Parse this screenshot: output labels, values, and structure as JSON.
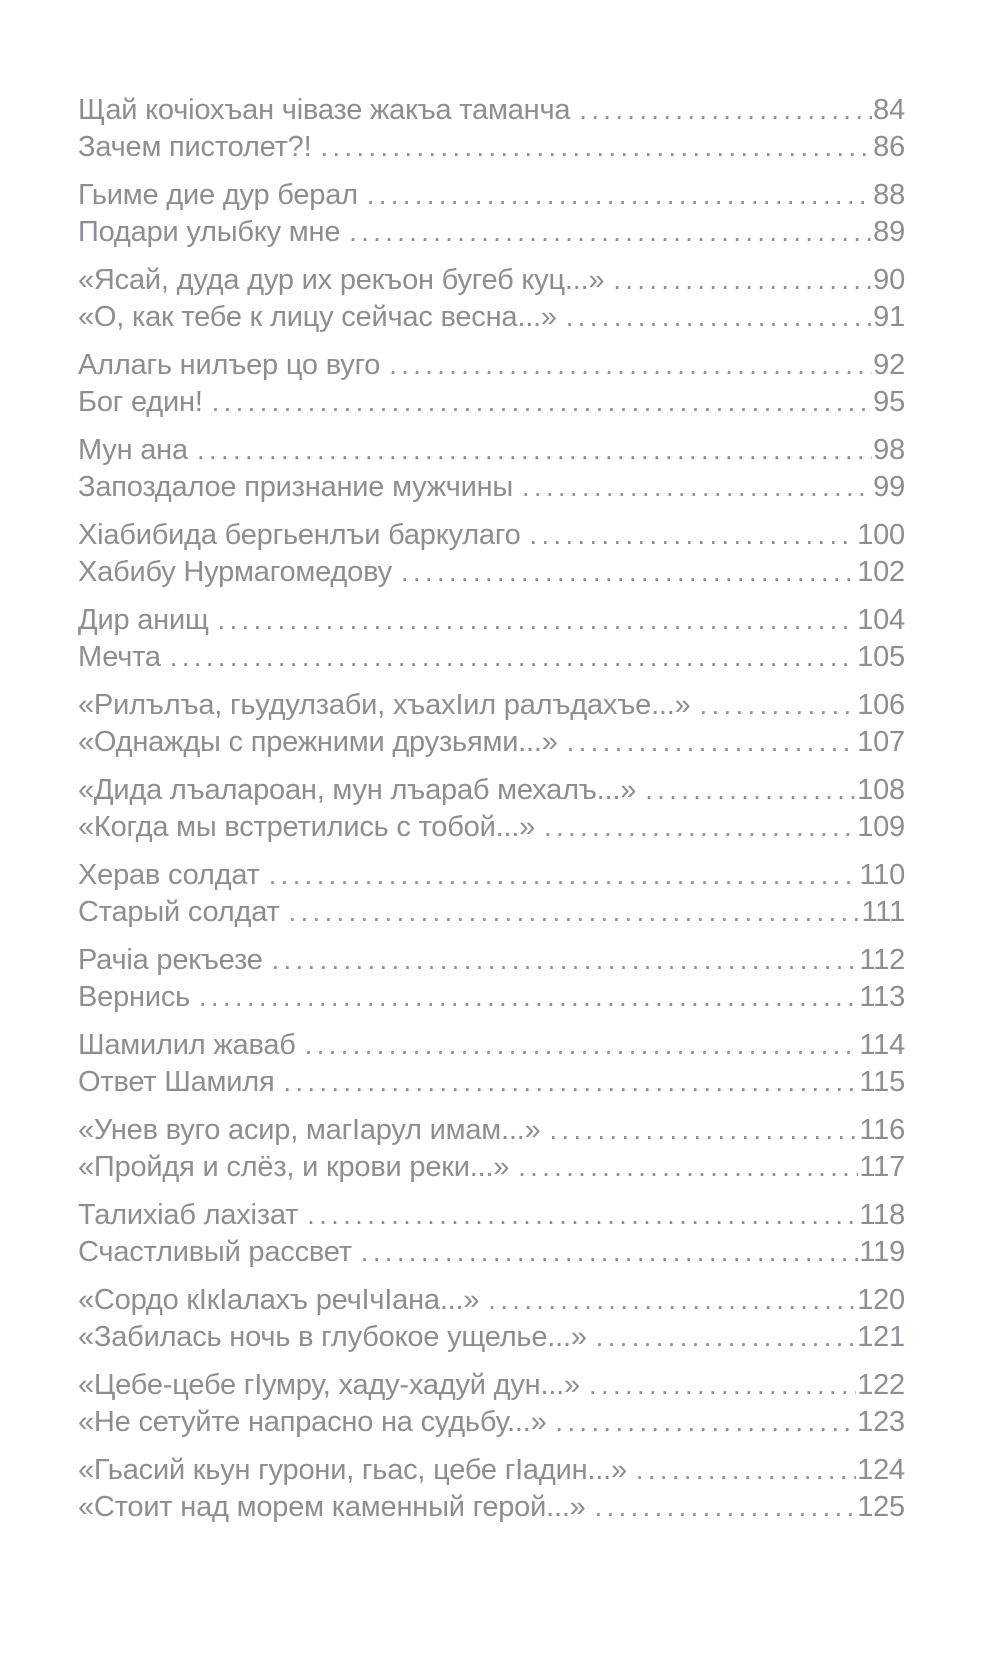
{
  "page": {
    "background_color": "#ffffff",
    "text_color": "#8b8f92"
  },
  "toc": {
    "pairs": [
      [
        {
          "title": "Щай кочіохъан чівазе жакъа таманча",
          "page": "84"
        },
        {
          "title": "Зачем пистолет?!",
          "page": "86"
        }
      ],
      [
        {
          "title": "Гьиме дие дур берал",
          "page": "88"
        },
        {
          "title": "Подари улыбку мне",
          "page": "89"
        }
      ],
      [
        {
          "title": "«Ясай, дуда дур их рекъон бугеб куц...»",
          "page": "90"
        },
        {
          "title": "«О, как тебе к лицу сейчас весна...»",
          "page": "91"
        }
      ],
      [
        {
          "title": "Аллагь нилъер цо вуго",
          "page": "92"
        },
        {
          "title": "Бог един!",
          "page": "95"
        }
      ],
      [
        {
          "title": "Мун ана",
          "page": "98"
        },
        {
          "title": "Запоздалое признание мужчины",
          "page": "99"
        }
      ],
      [
        {
          "title": "Хіабибида бергьенлъи баркулаго",
          "page": "100"
        },
        {
          "title": "Хабибу Нурмагомедову",
          "page": "102"
        }
      ],
      [
        {
          "title": "Дир анищ",
          "page": "104"
        },
        {
          "title": "Мечта",
          "page": "105"
        }
      ],
      [
        {
          "title": "«Рилълъа, гьудулзаби, хъахІил ралъдахъе...»",
          "page": "106"
        },
        {
          "title": "«Однажды с прежними друзьями...»",
          "page": "107"
        }
      ],
      [
        {
          "title": "«Дида лъалароан, мун лъараб мехалъ...»",
          "page": "108"
        },
        {
          "title": "«Когда мы встретились с тобой...»",
          "page": "109"
        }
      ],
      [
        {
          "title": "Херав солдат",
          "page": "110"
        },
        {
          "title": "Старый солдат",
          "page": "111"
        }
      ],
      [
        {
          "title": "Рачіа рекъезе",
          "page": "112"
        },
        {
          "title": "Вернись",
          "page": "113"
        }
      ],
      [
        {
          "title": "Шамилил жаваб",
          "page": "114"
        },
        {
          "title": "Ответ Шамиля",
          "page": "115"
        }
      ],
      [
        {
          "title": "«Унев вуго асир, магІарул имам...»",
          "page": "116"
        },
        {
          "title": "«Пройдя и слёз, и крови реки...»",
          "page": "117"
        }
      ],
      [
        {
          "title": "Талихіаб лахізат",
          "page": "118"
        },
        {
          "title": "Счастливый рассвет",
          "page": "119"
        }
      ],
      [
        {
          "title": "«Сордо кІкІалахъ речІчІана...»",
          "page": "120"
        },
        {
          "title": "«Забилась ночь в глубокое ущелье...»",
          "page": "121"
        }
      ],
      [
        {
          "title": "«Цебе-цебе гІумру, хаду-хадуй дун...»",
          "page": "122"
        },
        {
          "title": "«Не сетуйте напрасно на судьбу...»",
          "page": "123"
        }
      ],
      [
        {
          "title": "«Гьасий кьун гурони, гьас, цебе гІадин...»",
          "page": "124"
        },
        {
          "title": "«Стоит над морем каменный герой...»",
          "page": "125"
        }
      ]
    ]
  }
}
